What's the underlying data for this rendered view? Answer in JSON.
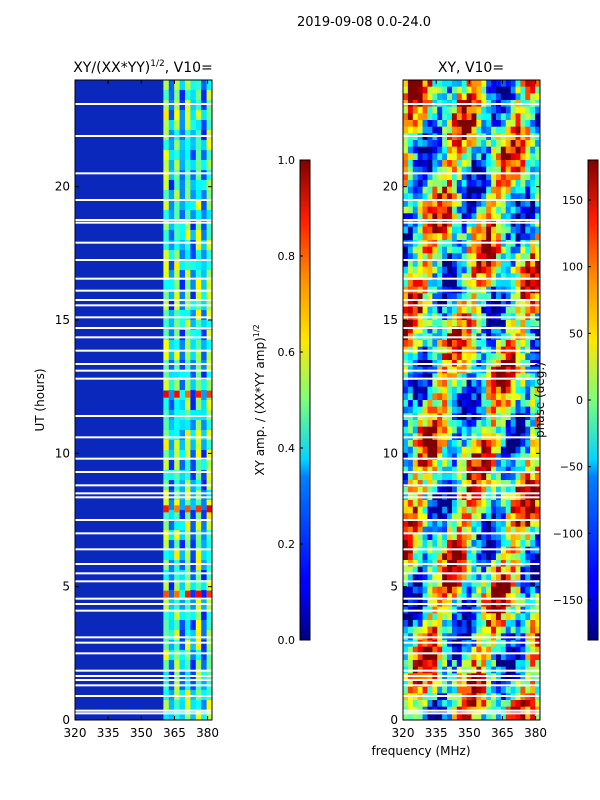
{
  "figure": {
    "suptitle": "2019-09-08 0.0-24.0",
    "xlabel": "frequency (MHz)"
  },
  "chart_data": [
    {
      "type": "heatmap",
      "title_main": "XY/(XX*YY)",
      "title_sup": "1/2",
      "title_tail": ", V10=",
      "ylabel": "UT (hours)",
      "xlim": [
        320,
        382
      ],
      "ylim": [
        0,
        24
      ],
      "xticks": [
        320,
        335,
        350,
        365,
        380
      ],
      "yticks": [
        0,
        5,
        10,
        15,
        20
      ],
      "colorbar": {
        "label_main": "XY amp. / (XX*YY amp)",
        "label_sup": "1/2",
        "range": [
          0.0,
          1.0
        ],
        "ticks": [
          "0.0",
          "0.2",
          "0.4",
          "0.6",
          "0.8",
          "1.0"
        ],
        "colormap": "jet"
      },
      "bright_band_MHz": [
        360,
        382
      ],
      "peak_hours": [
        4.7,
        7.9,
        12.2
      ]
    },
    {
      "type": "heatmap",
      "title": "XY, V10=",
      "xlim": [
        320,
        382
      ],
      "ylim": [
        0,
        24
      ],
      "xticks": [
        320,
        335,
        350,
        365,
        380
      ],
      "yticks": [
        0,
        5,
        10,
        15,
        20
      ],
      "colorbar": {
        "label": "phase (deg.)",
        "range": [
          -180,
          180
        ],
        "ticks": [
          "−150",
          "−100",
          "−50",
          "0",
          "50",
          "100",
          "150"
        ],
        "colormap": "jet"
      }
    }
  ],
  "gaps_hours": [
    0.25,
    0.35,
    0.9,
    1.3,
    1.5,
    1.65,
    1.85,
    2.5,
    2.9,
    3.1,
    4.1,
    4.35,
    4.55,
    5.2,
    5.5,
    5.85,
    6.4,
    7.0,
    7.5,
    8.35,
    8.5,
    8.8,
    9.3,
    9.8,
    10.6,
    11.4,
    12.8,
    13.1,
    13.35,
    13.85,
    14.35,
    14.7,
    15.1,
    15.55,
    15.75,
    16.1,
    16.55,
    17.25,
    17.9,
    18.65,
    18.75,
    19.5,
    20.5,
    21.9,
    23.1
  ]
}
